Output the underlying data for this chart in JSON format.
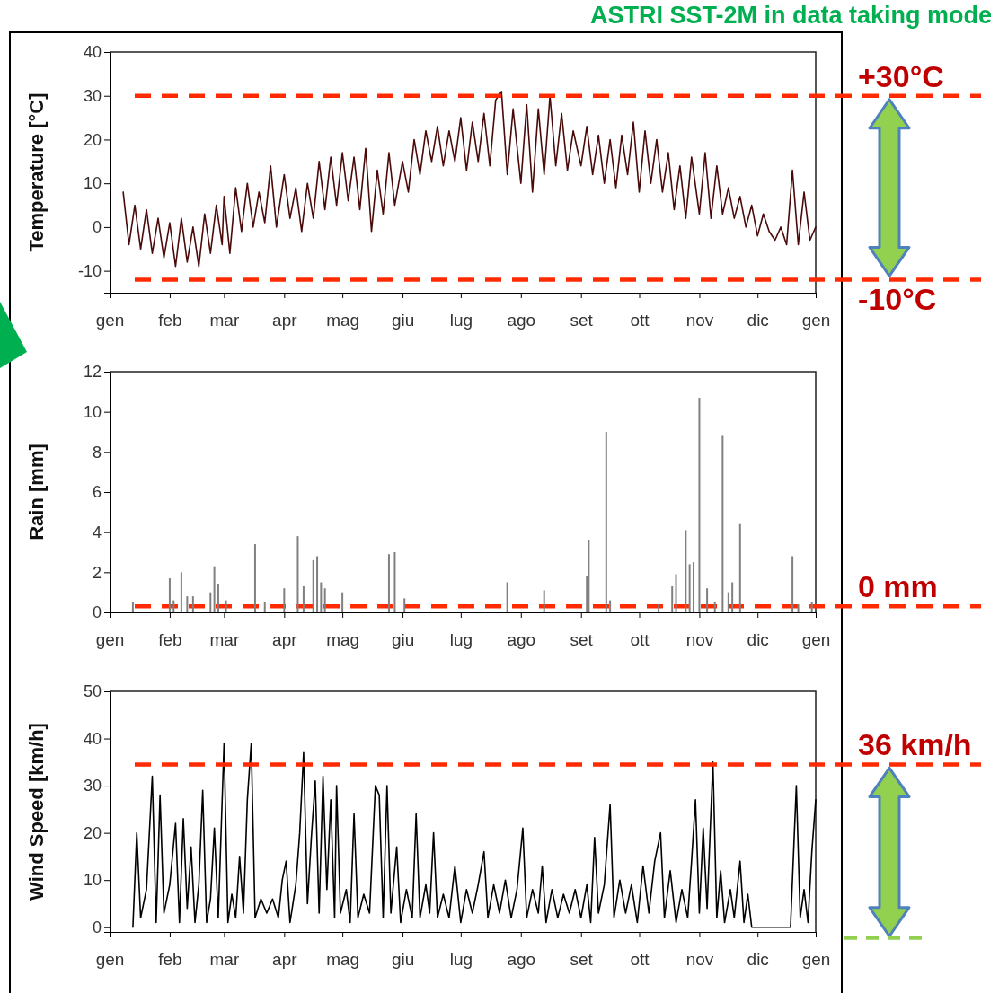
{
  "chart_data": [
    {
      "type": "line",
      "ylabel": "Temperature  [°C]",
      "annotations": [
        "ASTRI SST-2M in data taking mode"
      ],
      "color": "#4a0a0a",
      "xlim": [
        "--01-01",
        "--12-31"
      ],
      "xticks": [
        {
          "value": "--01-01",
          "label": "gen"
        },
        {
          "value": "--02-01",
          "label": "feb"
        },
        {
          "value": "--03-01",
          "label": "mar"
        },
        {
          "value": "--04-01",
          "label": "apr"
        },
        {
          "value": "--05-01",
          "label": "mag"
        },
        {
          "value": "--06-01",
          "label": "giu"
        },
        {
          "value": "--07-01",
          "label": "lug"
        },
        {
          "value": "--08-01",
          "label": "ago"
        },
        {
          "value": "--09-01",
          "label": "set"
        },
        {
          "value": "--10-01",
          "label": "ott"
        },
        {
          "value": "--11-01",
          "label": "nov"
        },
        {
          "value": "--12-01",
          "label": "dic"
        },
        {
          "value": "--12-31",
          "label": "gen"
        }
      ],
      "ylim": [
        -15,
        40
      ],
      "yticks": [
        -10,
        0,
        10,
        20,
        30,
        40
      ],
      "x": [
        "--01-08",
        "--01-11",
        "--01-14",
        "--01-17",
        "--01-20",
        "--01-23",
        "--01-26",
        "--01-29",
        "--02-01",
        "--02-04",
        "--02-07",
        "--02-10",
        "--02-13",
        "--02-16",
        "--02-19",
        "--02-22",
        "--02-25",
        "--02-28",
        "--03-01",
        "--03-04",
        "--03-07",
        "--03-10",
        "--03-13",
        "--03-16",
        "--03-19",
        "--03-22",
        "--03-25",
        "--03-28",
        "--04-01",
        "--04-04",
        "--04-07",
        "--04-10",
        "--04-13",
        "--04-16",
        "--04-19",
        "--04-22",
        "--04-25",
        "--04-28",
        "--05-01",
        "--05-04",
        "--05-07",
        "--05-10",
        "--05-13",
        "--05-16",
        "--05-19",
        "--05-22",
        "--05-25",
        "--05-28",
        "--06-01",
        "--06-04",
        "--06-07",
        "--06-10",
        "--06-13",
        "--06-16",
        "--06-19",
        "--06-22",
        "--06-25",
        "--06-28",
        "--07-01",
        "--07-04",
        "--07-07",
        "--07-10",
        "--07-13",
        "--07-16",
        "--07-19",
        "--07-22",
        "--07-25",
        "--07-28",
        "--08-01",
        "--08-04",
        "--08-07",
        "--08-10",
        "--08-13",
        "--08-16",
        "--08-19",
        "--08-22",
        "--08-25",
        "--08-28",
        "--09-01",
        "--09-04",
        "--09-07",
        "--09-10",
        "--09-13",
        "--09-16",
        "--09-19",
        "--09-22",
        "--09-25",
        "--09-28",
        "--10-01",
        "--10-04",
        "--10-07",
        "--10-10",
        "--10-13",
        "--10-16",
        "--10-19",
        "--10-22",
        "--10-25",
        "--10-28",
        "--11-01",
        "--11-04",
        "--11-07",
        "--11-10",
        "--11-13",
        "--11-16",
        "--11-19",
        "--11-22",
        "--11-25",
        "--11-28",
        "--12-01",
        "--12-04",
        "--12-07",
        "--12-10",
        "--12-13",
        "--12-16",
        "--12-19",
        "--12-22",
        "--12-25",
        "--12-28",
        "--12-31"
      ],
      "values": [
        8,
        -4,
        5,
        -5,
        4,
        -6,
        2,
        -7,
        1,
        -9,
        2,
        -8,
        0,
        -9,
        3,
        -6,
        5,
        -4,
        7,
        -6,
        9,
        -1,
        10,
        0,
        8,
        1,
        14,
        0,
        12,
        2,
        9,
        -1,
        10,
        2,
        15,
        4,
        16,
        5,
        17,
        6,
        16,
        4,
        18,
        -1,
        13,
        3,
        17,
        5,
        15,
        8,
        20,
        12,
        22,
        15,
        23,
        14,
        22,
        15,
        25,
        13,
        24,
        15,
        26,
        14,
        29,
        31,
        12,
        27,
        10,
        28,
        8,
        27,
        12,
        30,
        14,
        26,
        13,
        22,
        14,
        23,
        12,
        21,
        10,
        20,
        9,
        21,
        12,
        24,
        8,
        22,
        10,
        20,
        8,
        17,
        4,
        14,
        2,
        16,
        3,
        17,
        2,
        14,
        3,
        9,
        2,
        7,
        0,
        5,
        -2,
        3,
        -1,
        -3,
        0,
        -4,
        13,
        -4,
        8,
        -3,
        0
      ],
      "ref_lines": [
        {
          "axis": "y",
          "value": 30,
          "label": "+30°C",
          "color": "#ff2a00",
          "line_style": "dashed"
        },
        {
          "axis": "y",
          "value": -12,
          "label": "-10°C",
          "color": "#ff2a00",
          "line_style": "dashed"
        }
      ]
    },
    {
      "type": "bar",
      "ylabel": "Rain  [mm]",
      "color": "#808080",
      "xlim": [
        "--01-01",
        "--12-31"
      ],
      "xticks": [
        {
          "value": "--01-01",
          "label": "gen"
        },
        {
          "value": "--02-01",
          "label": "feb"
        },
        {
          "value": "--03-01",
          "label": "mar"
        },
        {
          "value": "--04-01",
          "label": "apr"
        },
        {
          "value": "--05-01",
          "label": "mag"
        },
        {
          "value": "--06-01",
          "label": "giu"
        },
        {
          "value": "--07-01",
          "label": "lug"
        },
        {
          "value": "--08-01",
          "label": "ago"
        },
        {
          "value": "--09-01",
          "label": "set"
        },
        {
          "value": "--10-01",
          "label": "ott"
        },
        {
          "value": "--11-01",
          "label": "nov"
        },
        {
          "value": "--12-01",
          "label": "dic"
        },
        {
          "value": "--12-31",
          "label": "gen"
        }
      ],
      "ylim": [
        0,
        12
      ],
      "yticks": [
        0,
        2,
        4,
        6,
        8,
        10,
        12
      ],
      "x": [
        "--01-13",
        "--02-01",
        "--02-03",
        "--02-07",
        "--02-10",
        "--02-13",
        "--02-22",
        "--02-24",
        "--02-26",
        "--03-02",
        "--03-17",
        "--03-22",
        "--04-01",
        "--04-08",
        "--04-11",
        "--04-16",
        "--04-18",
        "--04-20",
        "--04-22",
        "--05-01",
        "--05-25",
        "--05-28",
        "--06-02",
        "--07-25",
        "--08-13",
        "--09-04",
        "--09-05",
        "--09-14",
        "--09-16",
        "--10-11",
        "--10-18",
        "--10-20",
        "--10-25",
        "--10-27",
        "--10-29",
        "--11-01",
        "--11-05",
        "--11-09",
        "--11-13",
        "--11-16",
        "--11-18",
        "--11-22",
        "--12-19",
        "--12-22",
        "--12-29"
      ],
      "values": [
        0.5,
        1.7,
        0.6,
        2.0,
        0.8,
        0.8,
        1.0,
        2.3,
        1.4,
        0.6,
        3.4,
        0.5,
        1.2,
        3.8,
        1.3,
        2.6,
        2.8,
        1.5,
        1.2,
        1.0,
        2.9,
        3.0,
        0.7,
        1.5,
        1.1,
        1.8,
        3.6,
        9.0,
        0.6,
        0.4,
        1.3,
        1.9,
        4.1,
        2.4,
        2.5,
        10.7,
        1.2,
        0.5,
        8.8,
        1.0,
        1.5,
        4.4,
        2.8,
        0.4,
        0.5
      ],
      "ref_lines": [
        {
          "axis": "y",
          "value": 0.3,
          "label": "0 mm",
          "color": "#ff2a00",
          "line_style": "dashed"
        }
      ]
    },
    {
      "type": "line",
      "ylabel": "Wind Speed  [km/h]",
      "color": "#000000",
      "xlim": [
        "--01-01",
        "--12-31"
      ],
      "xticks": [
        {
          "value": "--01-01",
          "label": "gen"
        },
        {
          "value": "--02-01",
          "label": "feb"
        },
        {
          "value": "--03-01",
          "label": "mar"
        },
        {
          "value": "--04-01",
          "label": "apr"
        },
        {
          "value": "--05-01",
          "label": "mag"
        },
        {
          "value": "--06-01",
          "label": "giu"
        },
        {
          "value": "--07-01",
          "label": "lug"
        },
        {
          "value": "--08-01",
          "label": "ago"
        },
        {
          "value": "--09-01",
          "label": "set"
        },
        {
          "value": "--10-01",
          "label": "ott"
        },
        {
          "value": "--11-01",
          "label": "nov"
        },
        {
          "value": "--12-01",
          "label": "dic"
        },
        {
          "value": "--12-31",
          "label": "gen"
        }
      ],
      "ylim": [
        -1,
        50
      ],
      "yticks": [
        0,
        10,
        20,
        30,
        40,
        50
      ],
      "x": [
        "--01-13",
        "--01-15",
        "--01-17",
        "--01-20",
        "--01-23",
        "--01-25",
        "--01-27",
        "--01-29",
        "--02-01",
        "--02-04",
        "--02-06",
        "--02-08",
        "--02-10",
        "--02-12",
        "--02-14",
        "--02-16",
        "--02-18",
        "--02-20",
        "--02-22",
        "--02-24",
        "--02-26",
        "--03-01",
        "--03-03",
        "--03-05",
        "--03-07",
        "--03-09",
        "--03-11",
        "--03-13",
        "--03-15",
        "--03-17",
        "--03-20",
        "--03-23",
        "--03-26",
        "--03-29",
        "--03-31",
        "--04-02",
        "--04-04",
        "--04-07",
        "--04-09",
        "--04-11",
        "--04-13",
        "--04-15",
        "--04-17",
        "--04-19",
        "--04-21",
        "--04-23",
        "--04-25",
        "--04-27",
        "--04-28",
        "--04-30",
        "--05-03",
        "--05-05",
        "--05-07",
        "--05-09",
        "--05-12",
        "--05-15",
        "--05-18",
        "--05-20",
        "--05-22",
        "--05-24",
        "--05-26",
        "--05-29",
        "--05-31",
        "--06-03",
        "--06-06",
        "--06-08",
        "--06-10",
        "--06-13",
        "--06-15",
        "--06-17",
        "--06-19",
        "--06-22",
        "--06-25",
        "--06-28",
        "--07-01",
        "--07-04",
        "--07-07",
        "--07-10",
        "--07-13",
        "--07-15",
        "--07-18",
        "--07-21",
        "--07-24",
        "--07-27",
        "--07-30",
        "--08-02",
        "--08-04",
        "--08-07",
        "--08-10",
        "--08-12",
        "--08-14",
        "--08-17",
        "--08-20",
        "--08-23",
        "--08-26",
        "--08-29",
        "--09-01",
        "--09-04",
        "--09-06",
        "--09-08",
        "--09-10",
        "--09-13",
        "--09-16",
        "--09-18",
        "--09-21",
        "--09-24",
        "--09-27",
        "--09-30",
        "--10-03",
        "--10-06",
        "--10-09",
        "--10-12",
        "--10-14",
        "--10-17",
        "--10-20",
        "--10-23",
        "--10-26",
        "--10-28",
        "--10-30",
        "--11-01",
        "--11-03",
        "--11-05",
        "--11-08",
        "--11-10",
        "--11-12",
        "--11-14",
        "--11-17",
        "--11-19",
        "--11-22",
        "--11-24",
        "--11-26",
        "--11-28",
        "--12-18",
        "--12-20",
        "--12-21",
        "--12-23",
        "--12-25",
        "--12-27",
        "--12-29",
        "--12-31"
      ],
      "values": [
        0,
        20,
        2,
        8,
        32,
        1,
        28,
        3,
        9,
        22,
        1,
        23,
        4,
        17,
        1,
        9,
        29,
        1,
        6,
        21,
        2,
        39,
        1,
        7,
        2,
        15,
        3,
        27,
        39,
        2,
        6,
        3,
        6,
        2,
        10,
        14,
        1,
        9,
        20,
        37,
        5,
        19,
        31,
        3,
        32,
        8,
        27,
        2,
        30,
        3,
        8,
        1,
        24,
        2,
        7,
        3,
        30,
        28,
        2,
        30,
        3,
        17,
        1,
        8,
        2,
        24,
        2,
        9,
        3,
        20,
        2,
        7,
        2,
        13,
        1,
        8,
        3,
        9,
        16,
        2,
        9,
        3,
        10,
        2,
        8,
        21,
        2,
        8,
        3,
        13,
        1,
        8,
        2,
        7,
        3,
        8,
        2,
        9,
        1,
        19,
        3,
        9,
        26,
        2,
        10,
        3,
        9,
        1,
        13,
        3,
        14,
        20,
        2,
        12,
        1,
        8,
        2,
        14,
        27,
        3,
        21,
        4,
        35,
        2,
        12,
        1,
        8,
        2,
        14,
        1,
        7,
        0,
        0,
        20,
        30,
        2,
        8,
        1,
        16,
        27
      ],
      "ref_lines": [
        {
          "axis": "y",
          "value": 34.5,
          "label": "36 km/h",
          "color": "#ff2a00",
          "line_style": "dashed"
        }
      ]
    }
  ]
}
